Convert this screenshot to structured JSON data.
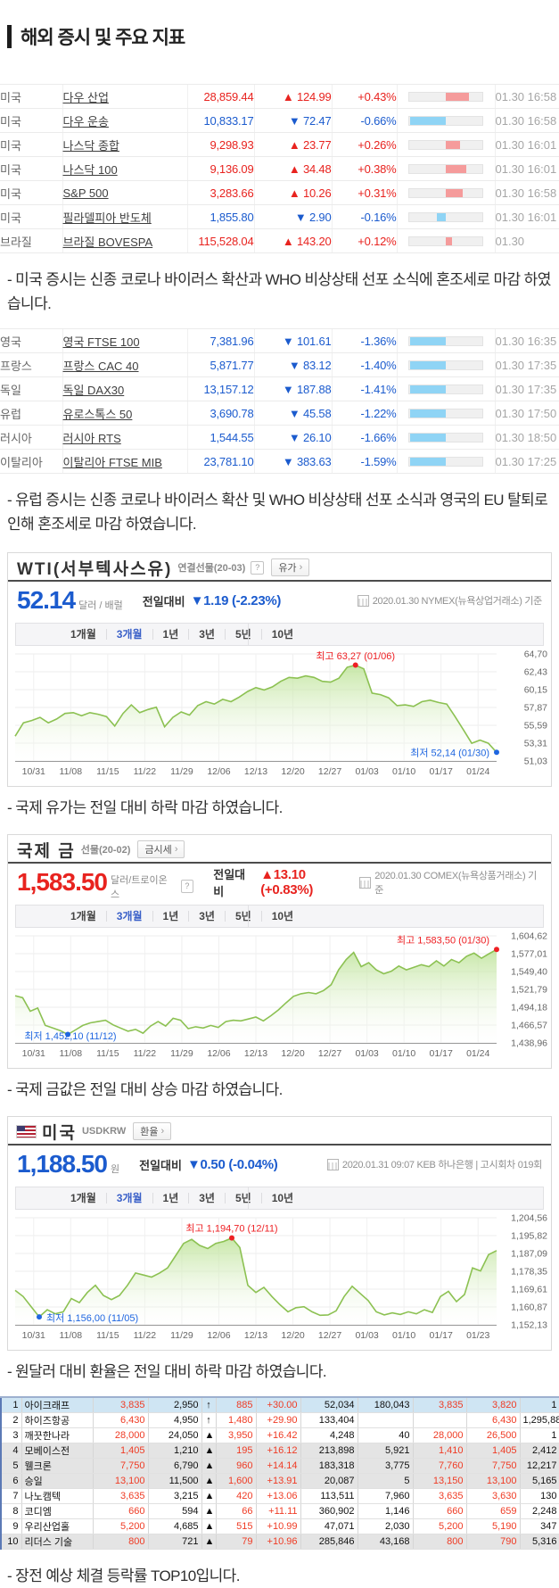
{
  "header": {
    "title": "해외 증시 및 주요 지표"
  },
  "colors": {
    "up": "#e8231f",
    "down": "#1b5bce",
    "bar_up": "#f59b9b",
    "bar_down": "#8fd4f5",
    "chart_line": "#8cc152",
    "chart_fill": "#b9e191",
    "anno_high": "#ee2024",
    "anno_low": "#1f66e0",
    "grid": "#ececec",
    "axis_text": "#666666"
  },
  "us_table": {
    "rows": [
      {
        "country": "미국",
        "name": "다우 산업",
        "value": "28,859.44",
        "arrow": "▲",
        "change": "124.99",
        "pct": "+0.43%",
        "dir": "up",
        "time": "01.30 16:58"
      },
      {
        "country": "미국",
        "name": "다우 운송",
        "value": "10,833.17",
        "arrow": "▼",
        "change": "72.47",
        "pct": "-0.66%",
        "dir": "down",
        "time": "01.30 16:58"
      },
      {
        "country": "미국",
        "name": "나스닥 종합",
        "value": "9,298.93",
        "arrow": "▲",
        "change": "23.77",
        "pct": "+0.26%",
        "dir": "up",
        "time": "01.30 16:01"
      },
      {
        "country": "미국",
        "name": "나스닥 100",
        "value": "9,136.09",
        "arrow": "▲",
        "change": "34.48",
        "pct": "+0.38%",
        "dir": "up",
        "time": "01.30 16:01"
      },
      {
        "country": "미국",
        "name": "S&P 500",
        "value": "3,283.66",
        "arrow": "▲",
        "change": "10.26",
        "pct": "+0.31%",
        "dir": "up",
        "time": "01.30 16:58"
      },
      {
        "country": "미국",
        "name": "필라델피아 반도체",
        "value": "1,855.80",
        "arrow": "▼",
        "change": "2.90",
        "pct": "-0.16%",
        "dir": "down",
        "time": "01.30 16:01"
      },
      {
        "country": "브라질",
        "name": "브라질 BOVESPA",
        "value": "115,528.04",
        "arrow": "▲",
        "change": "143.20",
        "pct": "+0.12%",
        "dir": "up",
        "time": "01.30"
      }
    ]
  },
  "eu_table": {
    "rows": [
      {
        "country": "영국",
        "name": "영국 FTSE 100",
        "value": "7,381.96",
        "arrow": "▼",
        "change": "101.61",
        "pct": "-1.36%",
        "dir": "down",
        "time": "01.30 16:35"
      },
      {
        "country": "프랑스",
        "name": "프랑스 CAC 40",
        "value": "5,871.77",
        "arrow": "▼",
        "change": "83.12",
        "pct": "-1.40%",
        "dir": "down",
        "time": "01.30 17:35"
      },
      {
        "country": "독일",
        "name": "독일 DAX30",
        "value": "13,157.12",
        "arrow": "▼",
        "change": "187.88",
        "pct": "-1.41%",
        "dir": "down",
        "time": "01.30 17:35"
      },
      {
        "country": "유럽",
        "name": "유로스톡스 50",
        "value": "3,690.78",
        "arrow": "▼",
        "change": "45.58",
        "pct": "-1.22%",
        "dir": "down",
        "time": "01.30 17:50"
      },
      {
        "country": "러시아",
        "name": "러시아 RTS",
        "value": "1,544.55",
        "arrow": "▼",
        "change": "26.10",
        "pct": "-1.66%",
        "dir": "down",
        "time": "01.30 18:50"
      },
      {
        "country": "이탈리아",
        "name": "이탈리아 FTSE MIB",
        "value": "23,781.10",
        "arrow": "▼",
        "change": "383.63",
        "pct": "-1.59%",
        "dir": "down",
        "time": "01.30 17:25"
      }
    ]
  },
  "comments": {
    "us": "- 미국 증시는 신종 코로나 바이러스 확산과 WHO 비상상태 선포 소식에 혼조세로 마감 하였습니다.",
    "eu": "- 유럽 증시는 신종 코로나 바이러스 확산 및 WHO 비상상태 선포 소식과 영국의 EU 탈퇴로 인해 혼조세로 마감 하였습니다.",
    "oil": "- 국제 유가는 전일 대비 하락 마감 하였습니다.",
    "gold": "- 국제 금값은 전일 대비 상승 마감 하였습니다.",
    "fx": "- 원달러 대비 환율은 전일 대비 하락 마감 하였습니다.",
    "top10": "- 장전 예상 체결 등락률 TOP10입니다."
  },
  "charts": [
    {
      "title": "WTI(서부텍사스유)",
      "subtitle": "연결선물(20-03)",
      "help": "?",
      "button": "유가",
      "price": "52.14",
      "unit": "달러 / 배럴",
      "change_label": "전일대비",
      "change_text": "▼1.19 (-2.23%)",
      "dir": "down",
      "info": "2020.01.30  NYMEX(뉴욕상업거래소) 기준",
      "tabs": [
        "1개월",
        "3개월",
        "1년",
        "3년",
        "5년",
        "10년"
      ],
      "selected_tab": "3개월",
      "chart_data": {
        "type": "area",
        "x_labels": [
          "10/31",
          "11/08",
          "11/15",
          "11/22",
          "11/29",
          "12/06",
          "12/13",
          "12/20",
          "12/27",
          "01/03",
          "01/10",
          "01/17",
          "01/24"
        ],
        "y_labels": [
          "64,70",
          "62,43",
          "60,15",
          "57,87",
          "55,59",
          "53,31",
          "51,03"
        ],
        "y_max": 64.7,
        "y_min": 51.03,
        "values": [
          54.2,
          55.9,
          56.2,
          56.6,
          55.9,
          56.4,
          57.1,
          57.2,
          56.8,
          57.2,
          57.0,
          56.7,
          55.5,
          57.1,
          58.2,
          57.2,
          57.6,
          57.9,
          55.4,
          56.6,
          57.3,
          56.9,
          58.1,
          58.6,
          58.3,
          58.9,
          58.6,
          59.2,
          59.9,
          60.4,
          60.1,
          60.5,
          61.2,
          61.7,
          61.6,
          61.9,
          61.7,
          61.2,
          61.1,
          61.6,
          63.0,
          63.27,
          62.8,
          59.7,
          59.5,
          59.1,
          58.1,
          58.2,
          58.0,
          58.6,
          58.8,
          58.5,
          58.3,
          56.7,
          55.0,
          53.3,
          53.7,
          53.3,
          52.14
        ],
        "max_label": "최고 63,27 (01/06)",
        "min_label": "최저 52,14 (01/30)"
      }
    },
    {
      "title": "국제 금",
      "subtitle": "선물(20-02)",
      "help": "?",
      "button": "금시세",
      "price": "1,583.50",
      "unit": "달러/트로이온스",
      "change_label": "전일대비",
      "change_text": "▲13.10 (+0.83%)",
      "dir": "up",
      "info": "2020.01.30  COMEX(뉴욕상품거래소) 기준",
      "tabs": [
        "1개월",
        "3개월",
        "1년",
        "3년",
        "5년",
        "10년"
      ],
      "selected_tab": "3개월",
      "chart_data": {
        "type": "area",
        "x_labels": [
          "10/31",
          "11/08",
          "11/15",
          "11/22",
          "11/29",
          "12/06",
          "12/13",
          "12/20",
          "12/27",
          "01/03",
          "01/10",
          "01/17",
          "01/24"
        ],
        "y_labels": [
          "1,604,62",
          "1,577,01",
          "1,549,40",
          "1,521,79",
          "1,494,18",
          "1,466,57",
          "1,438,96"
        ],
        "y_max": 1604.62,
        "y_min": 1438.96,
        "values": [
          1512,
          1509,
          1488,
          1493,
          1466,
          1462,
          1458,
          1452.1,
          1459,
          1466,
          1470,
          1472,
          1474,
          1467,
          1462,
          1457,
          1460,
          1454,
          1465,
          1472,
          1465,
          1477,
          1474,
          1461,
          1464,
          1462,
          1466,
          1463,
          1472,
          1474,
          1473,
          1476,
          1479,
          1473,
          1481,
          1490,
          1501,
          1511,
          1515,
          1517,
          1515,
          1520,
          1529,
          1552,
          1568,
          1579,
          1557,
          1563,
          1552,
          1546,
          1550,
          1558,
          1552,
          1556,
          1560,
          1557,
          1566,
          1558,
          1568,
          1563,
          1573,
          1578,
          1570,
          1577,
          1583.5
        ],
        "max_label": "최고 1,583,50 (01/30)",
        "min_label": "최저 1,452,10 (11/12)"
      }
    },
    {
      "title": "미국",
      "subtitle": "USDKRW",
      "button": "환율",
      "price": "1,188.50",
      "unit": "원",
      "change_label": "전일대비",
      "change_text": "▼0.50 (-0.04%)",
      "dir": "down",
      "info": "2020.01.31 09:07  KEB 하나은행  |  고시회차 019회",
      "tabs": [
        "1개월",
        "3개월",
        "1년",
        "3년",
        "5년",
        "10년"
      ],
      "selected_tab": "3개월",
      "chart_data": {
        "type": "area",
        "x_labels": [
          "10/31",
          "11/08",
          "11/15",
          "11/22",
          "11/29",
          "12/06",
          "12/13",
          "12/20",
          "12/27",
          "01/03",
          "01/10",
          "01/17",
          "01/23"
        ],
        "y_labels": [
          "1,204,56",
          "1,195,82",
          "1,187,09",
          "1,178,35",
          "1,169,61",
          "1,160,87",
          "1,152,13"
        ],
        "y_max": 1204.56,
        "y_min": 1152.13,
        "values": [
          1169,
          1166,
          1161,
          1156.0,
          1159.5,
          1157.5,
          1158.5,
          1165,
          1163,
          1168,
          1171.5,
          1166.5,
          1164.5,
          1166.5,
          1171.5,
          1177.5,
          1176.5,
          1175.5,
          1177.5,
          1180,
          1186,
          1192,
          1194,
          1191,
          1189.5,
          1192,
          1193,
          1194.7,
          1190,
          1171.5,
          1168,
          1170.5,
          1166,
          1162,
          1158.5,
          1160.5,
          1161,
          1158.5,
          1156.8,
          1157,
          1159,
          1166,
          1171,
          1167.5,
          1164,
          1158.5,
          1157,
          1158,
          1157.2,
          1158.5,
          1157.5,
          1159.5,
          1158.2,
          1166,
          1168.5,
          1163.5,
          1167,
          1180,
          1178.5,
          1186.5,
          1188.5
        ],
        "max_label": "최고 1,194,70 (12/11)",
        "min_label": "최저 1,156,00 (11/05)"
      }
    }
  ],
  "top10": {
    "rows": [
      {
        "rank": "1",
        "name": "아이크래프",
        "pred": "3,835",
        "base": "2,950",
        "arrow": "↑",
        "chg": "885",
        "pct": "+30.00",
        "vol": "52,034",
        "amt": "180,043",
        "ask": "3,835",
        "bid": "3,820",
        "cnt": "1",
        "style": "sel"
      },
      {
        "rank": "2",
        "name": "하이즈항공",
        "pred": "6,430",
        "base": "4,950",
        "arrow": "↑",
        "chg": "1,480",
        "pct": "+29.90",
        "vol": "133,404",
        "amt": "",
        "ask": "",
        "bid": "6,430",
        "cnt": "1,295,888",
        "style": ""
      },
      {
        "rank": "3",
        "name": "깨끗한나라",
        "pred": "28,000",
        "base": "24,050",
        "arrow": "▲",
        "chg": "3,950",
        "pct": "+16.42",
        "vol": "4,248",
        "amt": "40",
        "ask": "28,000",
        "bid": "26,500",
        "cnt": "1",
        "style": ""
      },
      {
        "rank": "4",
        "name": "모베이스전",
        "pred": "1,405",
        "base": "1,210",
        "arrow": "▲",
        "chg": "195",
        "pct": "+16.12",
        "vol": "213,898",
        "amt": "5,921",
        "ask": "1,410",
        "bid": "1,405",
        "cnt": "2,412",
        "style": "alt"
      },
      {
        "rank": "5",
        "name": "웰크론",
        "pred": "7,750",
        "base": "6,790",
        "arrow": "▲",
        "chg": "960",
        "pct": "+14.14",
        "vol": "183,318",
        "amt": "3,775",
        "ask": "7,760",
        "bid": "7,750",
        "cnt": "12,217",
        "style": "alt"
      },
      {
        "rank": "6",
        "name": "승일",
        "pred": "13,100",
        "base": "11,500",
        "arrow": "▲",
        "chg": "1,600",
        "pct": "+13.91",
        "vol": "20,087",
        "amt": "5",
        "ask": "13,150",
        "bid": "13,100",
        "cnt": "5,165",
        "style": "alt"
      },
      {
        "rank": "7",
        "name": "나노캠텍",
        "pred": "3,635",
        "base": "3,215",
        "arrow": "▲",
        "chg": "420",
        "pct": "+13.06",
        "vol": "113,511",
        "amt": "7,960",
        "ask": "3,635",
        "bid": "3,630",
        "cnt": "130",
        "style": ""
      },
      {
        "rank": "8",
        "name": "코디엠",
        "pred": "660",
        "base": "594",
        "arrow": "▲",
        "chg": "66",
        "pct": "+11.11",
        "vol": "360,902",
        "amt": "1,146",
        "ask": "660",
        "bid": "659",
        "cnt": "2,248",
        "style": ""
      },
      {
        "rank": "9",
        "name": "우리산업홀",
        "pred": "5,200",
        "base": "4,685",
        "arrow": "▲",
        "chg": "515",
        "pct": "+10.99",
        "vol": "47,071",
        "amt": "2,030",
        "ask": "5,200",
        "bid": "5,190",
        "cnt": "347",
        "style": ""
      },
      {
        "rank": "10",
        "name": "리더스 기술",
        "pred": "800",
        "base": "721",
        "arrow": "▲",
        "chg": "79",
        "pct": "+10.96",
        "vol": "285,846",
        "amt": "43,168",
        "ask": "800",
        "bid": "790",
        "cnt": "5,316",
        "style": "alt"
      }
    ]
  }
}
